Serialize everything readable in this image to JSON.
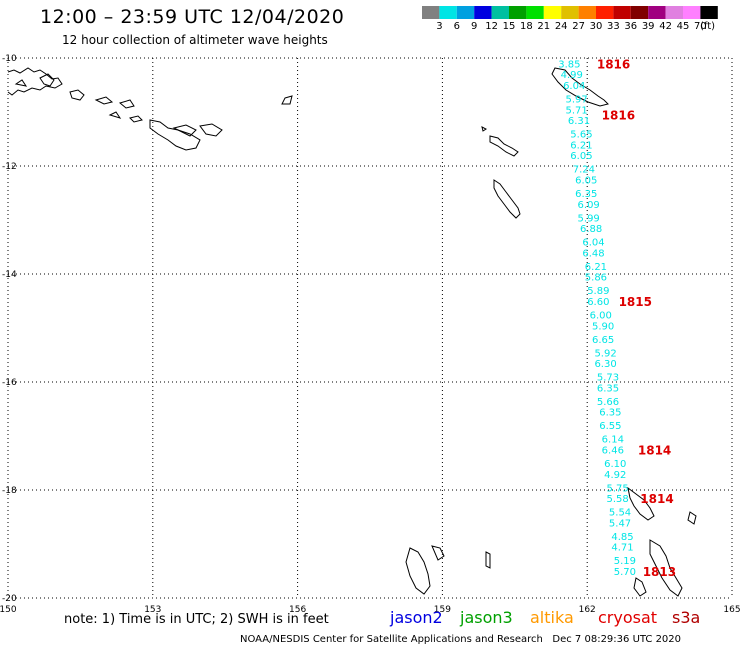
{
  "header": {
    "title": "12:00 – 23:59 UTC 12/04/2020",
    "subtitle": "12 hour collection of altimeter wave heights"
  },
  "legend": {
    "unit": "(ft)",
    "labels": [
      "3",
      "6",
      "9",
      "12",
      "15",
      "18",
      "21",
      "24",
      "27",
      "30",
      "33",
      "36",
      "39",
      "42",
      "45",
      "70"
    ],
    "colors": [
      "#808080",
      "#00e5e5",
      "#00a0e0",
      "#0000e0",
      "#00c0a0",
      "#00a000",
      "#00e000",
      "#ffff00",
      "#e0c000",
      "#ff8000",
      "#ff2000",
      "#c00000",
      "#800000",
      "#a00080",
      "#e080e0",
      "#ff80ff",
      "#000000"
    ]
  },
  "axes": {
    "lon_labels": [
      "150",
      "153",
      "156",
      "159",
      "162",
      "165"
    ],
    "lat_labels": [
      "-10",
      "-12",
      "-14",
      "-16",
      "-18",
      "-20"
    ]
  },
  "chart_data": {
    "type": "scatter",
    "x_axis": "longitude",
    "y_axis": "latitude",
    "xlim": [
      150,
      165
    ],
    "ylim": [
      -20,
      -10
    ],
    "series": [
      {
        "name": "cryosat",
        "color": "#00e5e5",
        "points": [
          {
            "lon": 161.4,
            "lat": -10.1,
            "swh": "3.85"
          },
          {
            "lon": 161.45,
            "lat": -10.3,
            "swh": "4.99"
          },
          {
            "lon": 161.5,
            "lat": -10.5,
            "swh": "6.04"
          },
          {
            "lon": 161.55,
            "lat": -10.75,
            "swh": "5.97"
          },
          {
            "lon": 161.55,
            "lat": -10.95,
            "swh": "5.71"
          },
          {
            "lon": 161.6,
            "lat": -11.15,
            "swh": "6.31"
          },
          {
            "lon": 161.65,
            "lat": -11.4,
            "swh": "5.65"
          },
          {
            "lon": 161.65,
            "lat": -11.6,
            "swh": "6.21"
          },
          {
            "lon": 161.65,
            "lat": -11.8,
            "swh": "6.05"
          },
          {
            "lon": 161.7,
            "lat": -12.05,
            "swh": "7.24"
          },
          {
            "lon": 161.75,
            "lat": -12.25,
            "swh": "6.05"
          },
          {
            "lon": 161.75,
            "lat": -12.5,
            "swh": "6.35"
          },
          {
            "lon": 161.8,
            "lat": -12.7,
            "swh": "6.09"
          },
          {
            "lon": 161.8,
            "lat": -12.95,
            "swh": "5.99"
          },
          {
            "lon": 161.85,
            "lat": -13.15,
            "swh": "6.88"
          },
          {
            "lon": 161.9,
            "lat": -13.4,
            "swh": "6.04"
          },
          {
            "lon": 161.9,
            "lat": -13.6,
            "swh": "6.48"
          },
          {
            "lon": 161.95,
            "lat": -13.85,
            "swh": "6.21"
          },
          {
            "lon": 161.95,
            "lat": -14.05,
            "swh": "5.86"
          },
          {
            "lon": 162.0,
            "lat": -14.3,
            "swh": "5.89"
          },
          {
            "lon": 162.0,
            "lat": -14.5,
            "swh": "6.60"
          },
          {
            "lon": 162.05,
            "lat": -14.75,
            "swh": "6.00"
          },
          {
            "lon": 162.1,
            "lat": -14.95,
            "swh": "5.90"
          },
          {
            "lon": 162.1,
            "lat": -15.2,
            "swh": "6.65"
          },
          {
            "lon": 162.15,
            "lat": -15.45,
            "swh": "5.92"
          },
          {
            "lon": 162.15,
            "lat": -15.65,
            "swh": "6.30"
          },
          {
            "lon": 162.2,
            "lat": -15.9,
            "swh": "5.73"
          },
          {
            "lon": 162.2,
            "lat": -16.1,
            "swh": "6.35"
          },
          {
            "lon": 162.2,
            "lat": -16.35,
            "swh": "5.66"
          },
          {
            "lon": 162.25,
            "lat": -16.55,
            "swh": "6.35"
          },
          {
            "lon": 162.25,
            "lat": -16.8,
            "swh": "6.55"
          },
          {
            "lon": 162.3,
            "lat": -17.05,
            "swh": "6.14"
          },
          {
            "lon": 162.3,
            "lat": -17.25,
            "swh": "6.46"
          },
          {
            "lon": 162.35,
            "lat": -17.5,
            "swh": "6.10"
          },
          {
            "lon": 162.35,
            "lat": -17.7,
            "swh": "4.92"
          },
          {
            "lon": 162.4,
            "lat": -17.95,
            "swh": "5.75"
          },
          {
            "lon": 162.4,
            "lat": -18.15,
            "swh": "5.58"
          },
          {
            "lon": 162.45,
            "lat": -18.4,
            "swh": "5.54"
          },
          {
            "lon": 162.45,
            "lat": -18.6,
            "swh": "5.47"
          },
          {
            "lon": 162.5,
            "lat": -18.85,
            "swh": "4.85"
          },
          {
            "lon": 162.5,
            "lat": -19.05,
            "swh": "4.71"
          },
          {
            "lon": 162.55,
            "lat": -19.3,
            "swh": "5.19"
          },
          {
            "lon": 162.55,
            "lat": -19.5,
            "swh": "5.70"
          }
        ]
      }
    ],
    "time_labels": [
      {
        "text": "1816",
        "lon": 162.2,
        "lat": -10.1
      },
      {
        "text": "1816",
        "lon": 162.3,
        "lat": -11.05
      },
      {
        "text": "1815",
        "lon": 162.65,
        "lat": -14.5
      },
      {
        "text": "1814",
        "lon": 163.05,
        "lat": -17.25
      },
      {
        "text": "1814",
        "lon": 163.1,
        "lat": -18.15
      },
      {
        "text": "1813",
        "lon": 163.15,
        "lat": -19.5
      }
    ]
  },
  "note": "note: 1) Time is in UTC; 2) SWH is in feet",
  "missions": [
    {
      "name": "jason2",
      "color": "#0000e0"
    },
    {
      "name": "jason3",
      "color": "#00a000"
    },
    {
      "name": "altika",
      "color": "#ff9900"
    },
    {
      "name": "cryosat",
      "color": "#e00000"
    },
    {
      "name": "s3a",
      "color": "#b00000"
    }
  ],
  "footer": {
    "credit": "NOAA/NESDIS Center for Satellite Applications and Research",
    "timestamp": "Dec  7 08:29:36 UTC 2020"
  }
}
